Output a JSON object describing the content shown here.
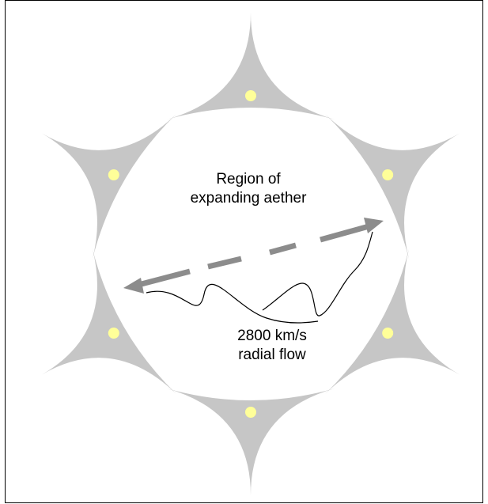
{
  "labels": {
    "region_line1": "Region of",
    "region_line2": "expanding aether",
    "flow_line1": "2800 km/s",
    "flow_line2": "radial flow"
  },
  "colors": {
    "cusp_fill": "#c6c6c6",
    "dot_fill": "#ffff99",
    "arrow": "#8c8c8c",
    "frame": "#000000",
    "leader_line": "#000000"
  },
  "nodes": [
    {
      "name": "node-top"
    },
    {
      "name": "node-upper-right"
    },
    {
      "name": "node-lower-right"
    },
    {
      "name": "node-bottom"
    },
    {
      "name": "node-lower-left"
    },
    {
      "name": "node-upper-left"
    }
  ]
}
